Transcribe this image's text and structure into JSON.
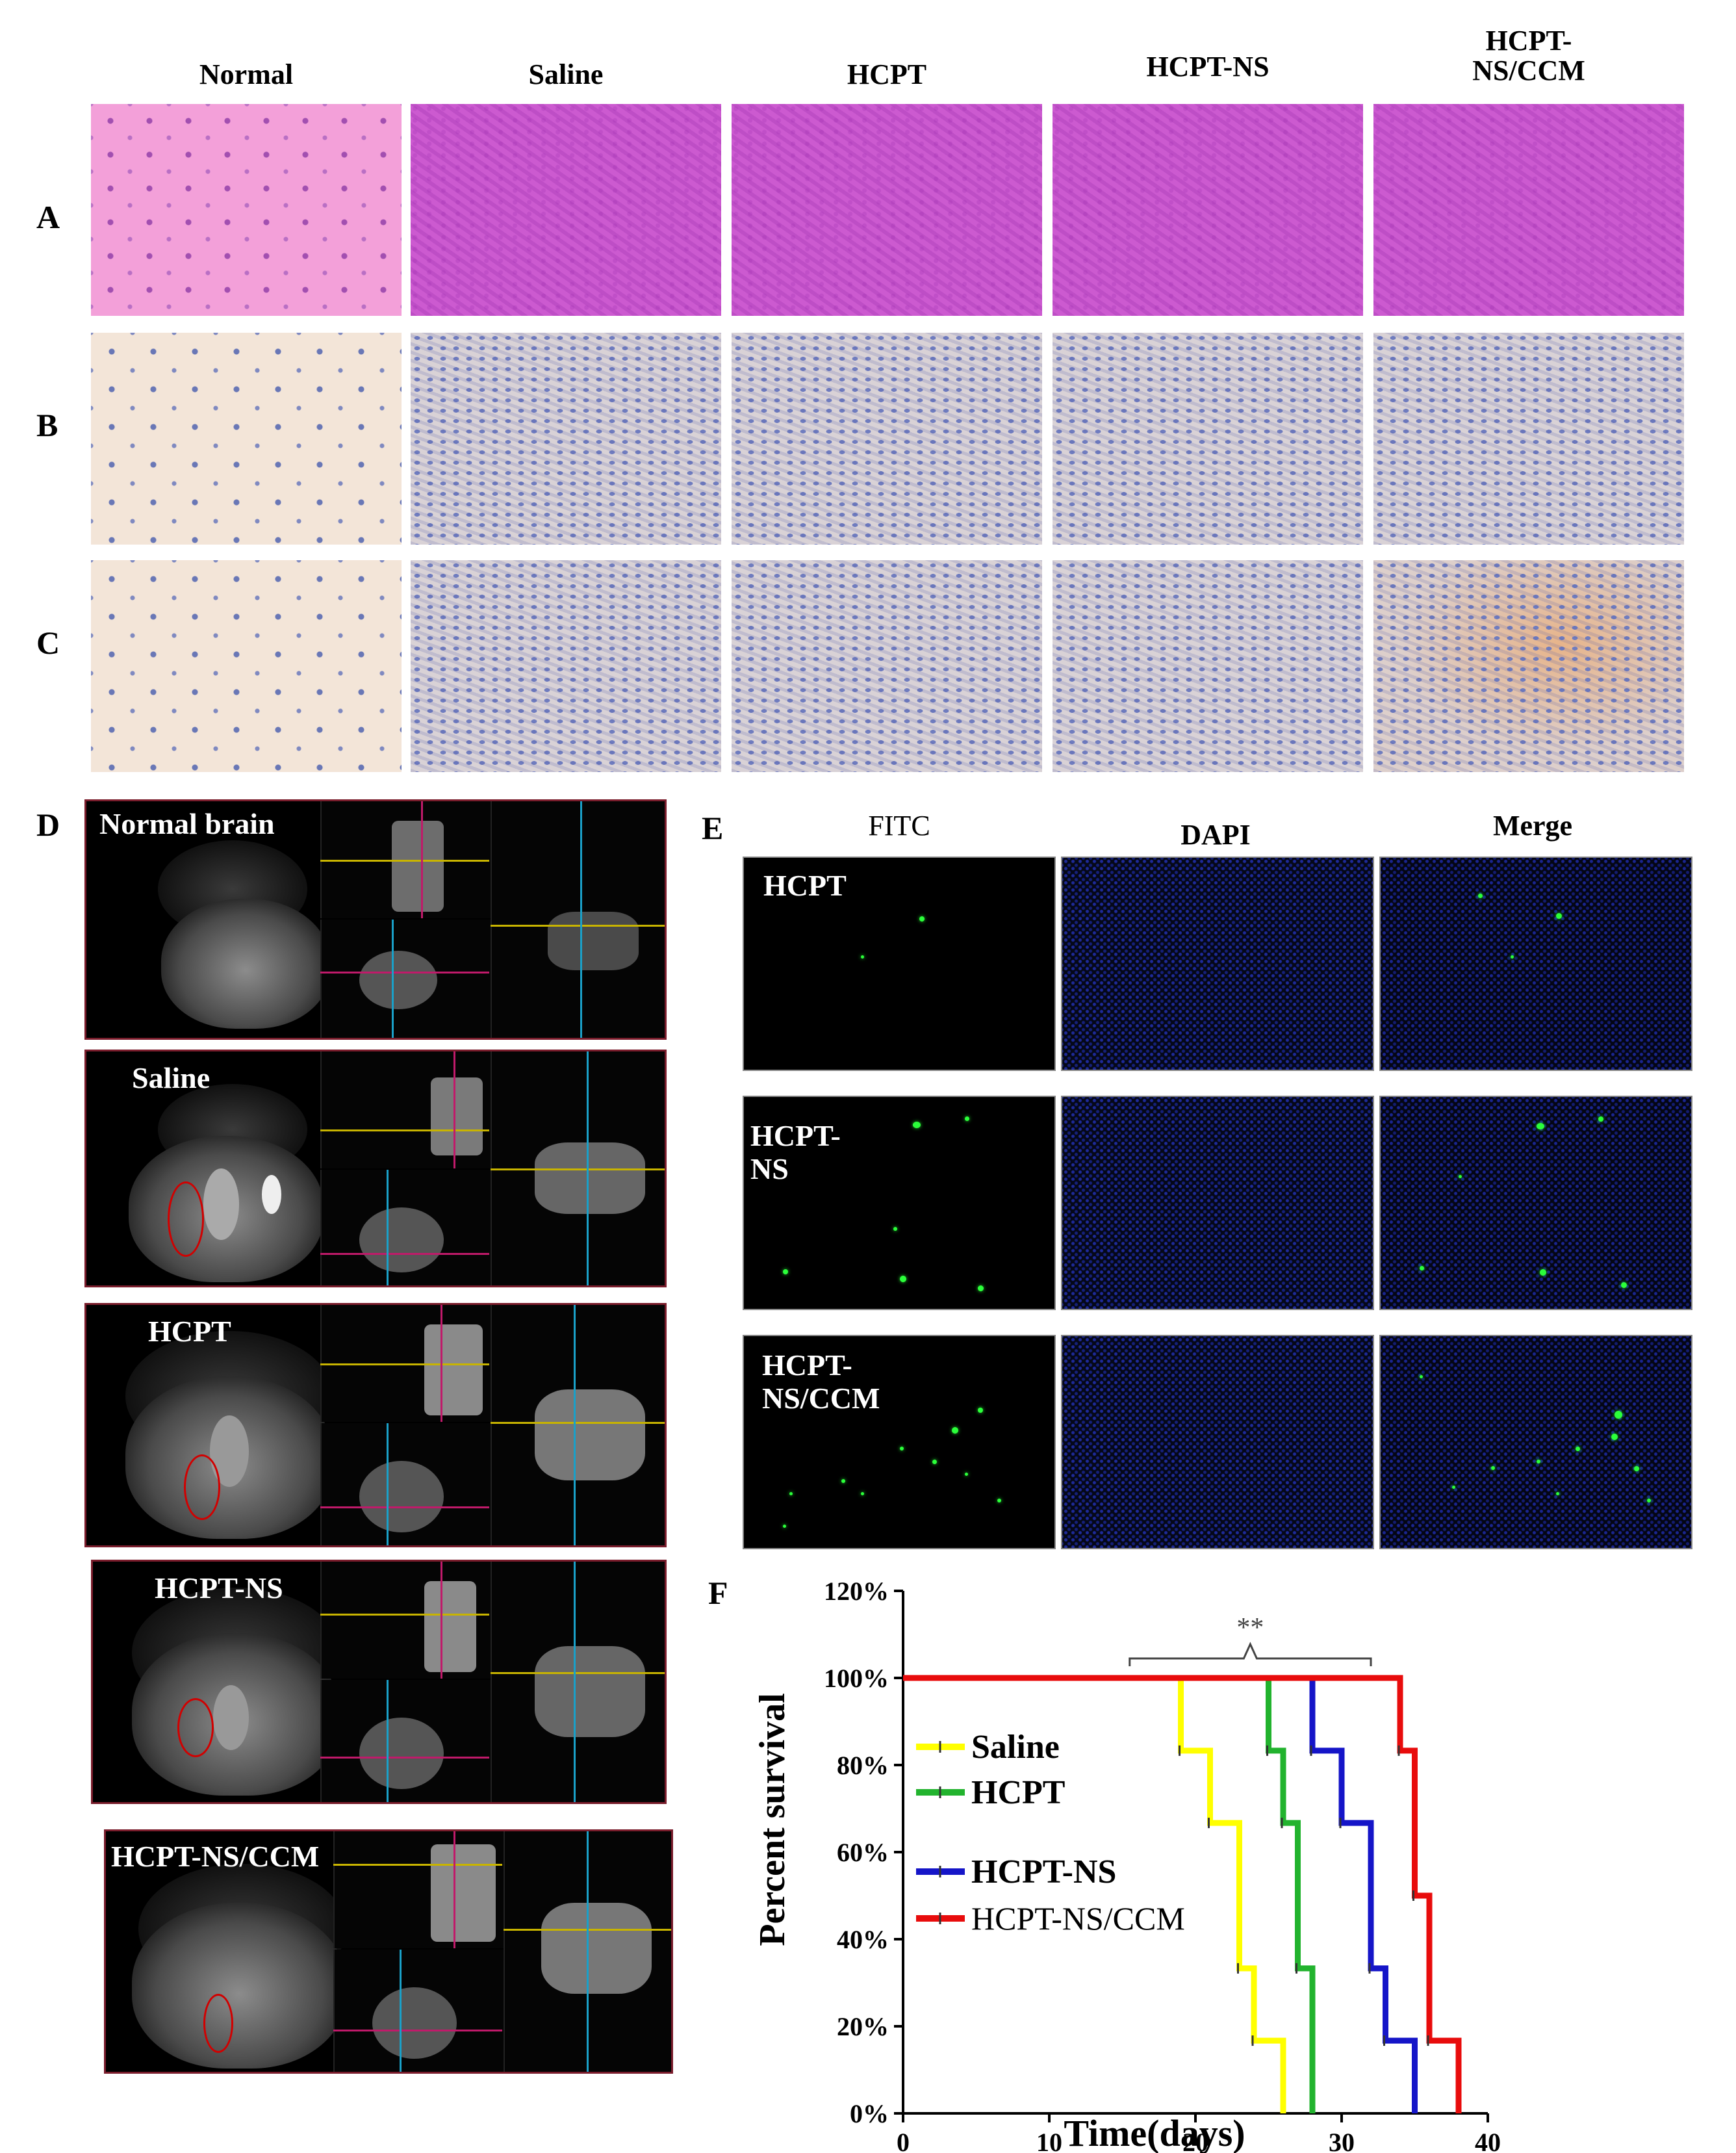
{
  "histology": {
    "columns": [
      "Normal",
      "Saline",
      "HCPT",
      "HCPT-NS",
      "HCPT-\nNS/CCM"
    ],
    "rows": [
      "A",
      "B",
      "C"
    ]
  },
  "panel_d": {
    "letter": "D",
    "labels": [
      "Normal brain",
      "Saline",
      "HCPT",
      "HCPT-NS",
      "HCPT-NS/CCM"
    ]
  },
  "panel_e": {
    "letter": "E",
    "columns": [
      "FITC",
      "DAPI",
      "Merge"
    ],
    "rows": [
      "HCPT",
      "HCPT-\nNS",
      "HCPT-\nNS/CCM"
    ]
  },
  "panel_f": {
    "letter": "F"
  },
  "colors": {
    "saline": "#ffff00",
    "hcpt": "#22b32e",
    "hcpt_ns": "#1515c8",
    "hcpt_ns_ccm": "#e80c0c"
  },
  "chart_data": {
    "type": "line",
    "xlabel": "Time(days)",
    "ylabel": "Percent survival",
    "xlim": [
      0,
      40
    ],
    "ylim": [
      0,
      120
    ],
    "xticks": [
      "0",
      "10",
      "20",
      "30",
      "40"
    ],
    "yticks": [
      "0%",
      "20%",
      "40%",
      "60%",
      "80%",
      "100%",
      "120%"
    ],
    "annotation": "**",
    "legend_position": "left-middle",
    "series": [
      {
        "name": "Saline",
        "color": "#ffff00",
        "x": [
          0,
          19,
          21,
          23,
          24,
          26
        ],
        "y": [
          100,
          83.3,
          66.7,
          33.3,
          16.7,
          0
        ]
      },
      {
        "name": "HCPT",
        "color": "#22b32e",
        "x": [
          0,
          25,
          26,
          27,
          28
        ],
        "y": [
          100,
          83.3,
          66.7,
          33.3,
          0
        ]
      },
      {
        "name": "HCPT-NS",
        "color": "#1515c8",
        "x": [
          0,
          28,
          30,
          32,
          33,
          35
        ],
        "y": [
          100,
          83.3,
          66.7,
          33.3,
          16.7,
          0
        ]
      },
      {
        "name": "HCPT-NS/CCM",
        "color": "#e80c0c",
        "x": [
          0,
          34,
          35,
          36,
          38
        ],
        "y": [
          100,
          83.3,
          50,
          16.7,
          0
        ]
      }
    ]
  }
}
